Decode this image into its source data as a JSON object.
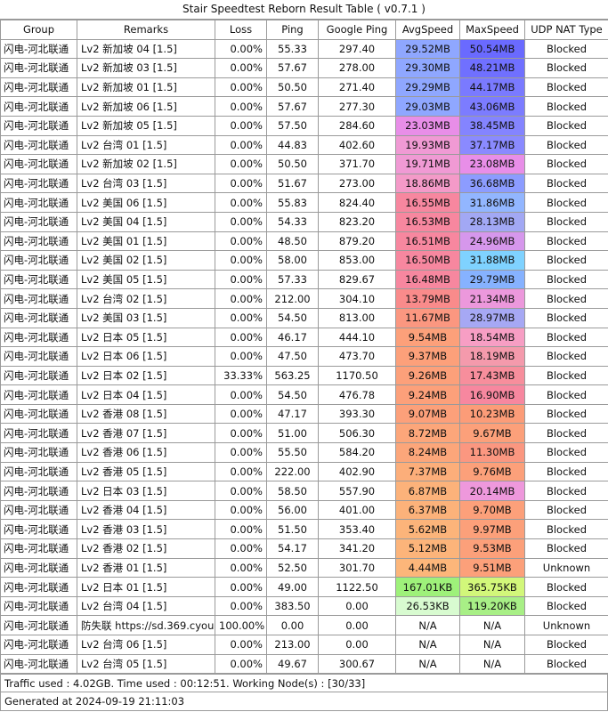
{
  "title": "Stair Speedtest Reborn Result Table ( v0.7.1 )",
  "headers": [
    "Group",
    "Remarks",
    "Loss",
    "Ping",
    "Google Ping",
    "AvgSpeed",
    "MaxSpeed",
    "UDP NAT Type"
  ],
  "rows": [
    {
      "group": "闪电-河北联通",
      "remarks": "Lv2 新加坡 04 [1.5]",
      "loss": "0.00%",
      "ping": "55.33",
      "gping": "297.40",
      "avg": "29.52MB",
      "avg_color": "#8fa7ff",
      "max": "50.54MB",
      "max_color": "#6a6aff",
      "nat": "Blocked"
    },
    {
      "group": "闪电-河北联通",
      "remarks": "Lv2 新加坡 03 [1.5]",
      "loss": "0.00%",
      "ping": "57.67",
      "gping": "278.00",
      "avg": "29.30MB",
      "avg_color": "#8fa7ff",
      "max": "48.21MB",
      "max_color": "#7070ff",
      "nat": "Blocked"
    },
    {
      "group": "闪电-河北联通",
      "remarks": "Lv2 新加坡 01 [1.5]",
      "loss": "0.00%",
      "ping": "50.50",
      "gping": "271.40",
      "avg": "29.29MB",
      "avg_color": "#8fa7ff",
      "max": "44.17MB",
      "max_color": "#7a7aff",
      "nat": "Blocked"
    },
    {
      "group": "闪电-河北联通",
      "remarks": "Lv2 新加坡 06 [1.5]",
      "loss": "0.00%",
      "ping": "57.67",
      "gping": "277.30",
      "avg": "29.03MB",
      "avg_color": "#8fa7ff",
      "max": "43.06MB",
      "max_color": "#7c7cff",
      "nat": "Blocked"
    },
    {
      "group": "闪电-河北联通",
      "remarks": "Lv2 新加坡 05 [1.5]",
      "loss": "0.00%",
      "ping": "57.50",
      "gping": "284.60",
      "avg": "23.03MB",
      "avg_color": "#e88ee8",
      "max": "38.45MB",
      "max_color": "#8484ff",
      "nat": "Blocked"
    },
    {
      "group": "闪电-河北联通",
      "remarks": "Lv2 台湾 01 [1.5]",
      "loss": "0.00%",
      "ping": "44.83",
      "gping": "402.60",
      "avg": "19.93MB",
      "avg_color": "#f09ad4",
      "max": "37.17MB",
      "max_color": "#8a8aff",
      "nat": "Blocked"
    },
    {
      "group": "闪电-河北联通",
      "remarks": "Lv2 新加坡 02 [1.5]",
      "loss": "0.00%",
      "ping": "50.50",
      "gping": "371.70",
      "avg": "19.71MB",
      "avg_color": "#f09ad4",
      "max": "23.08MB",
      "max_color": "#e88ee8",
      "nat": "Blocked"
    },
    {
      "group": "闪电-河北联通",
      "remarks": "Lv2 台湾 03 [1.5]",
      "loss": "0.00%",
      "ping": "51.67",
      "gping": "273.00",
      "avg": "18.86MB",
      "avg_color": "#f49ac8",
      "max": "36.68MB",
      "max_color": "#8c9cff",
      "nat": "Blocked"
    },
    {
      "group": "闪电-河北联通",
      "remarks": "Lv2 美国 06 [1.5]",
      "loss": "0.00%",
      "ping": "55.83",
      "gping": "824.40",
      "avg": "16.55MB",
      "avg_color": "#f7879f",
      "max": "31.86MB",
      "max_color": "#92b6ff",
      "nat": "Blocked"
    },
    {
      "group": "闪电-河北联通",
      "remarks": "Lv2 美国 04 [1.5]",
      "loss": "0.00%",
      "ping": "54.33",
      "gping": "823.20",
      "avg": "16.53MB",
      "avg_color": "#f7879f",
      "max": "28.13MB",
      "max_color": "#a2a8f4",
      "nat": "Blocked"
    },
    {
      "group": "闪电-河北联通",
      "remarks": "Lv2 美国 01 [1.5]",
      "loss": "0.00%",
      "ping": "48.50",
      "gping": "879.20",
      "avg": "16.51MB",
      "avg_color": "#f7879f",
      "max": "24.96MB",
      "max_color": "#d697ec",
      "nat": "Blocked"
    },
    {
      "group": "闪电-河北联通",
      "remarks": "Lv2 美国 02 [1.5]",
      "loss": "0.00%",
      "ping": "58.00",
      "gping": "853.00",
      "avg": "16.50MB",
      "avg_color": "#f7879f",
      "max": "31.88MB",
      "max_color": "#7fd2ff",
      "nat": "Blocked"
    },
    {
      "group": "闪电-河北联通",
      "remarks": "Lv2 美国 05 [1.5]",
      "loss": "0.00%",
      "ping": "57.33",
      "gping": "829.67",
      "avg": "16.48MB",
      "avg_color": "#f7879f",
      "max": "29.79MB",
      "max_color": "#86b2ff",
      "nat": "Blocked"
    },
    {
      "group": "闪电-河北联通",
      "remarks": "Lv2 台湾 02 [1.5]",
      "loss": "0.00%",
      "ping": "212.00",
      "gping": "304.10",
      "avg": "13.79MB",
      "avg_color": "#f98b8b",
      "max": "21.34MB",
      "max_color": "#ec98dc",
      "nat": "Blocked"
    },
    {
      "group": "闪电-河北联通",
      "remarks": "Lv2 美国 03 [1.5]",
      "loss": "0.00%",
      "ping": "54.50",
      "gping": "813.00",
      "avg": "11.67MB",
      "avg_color": "#fb9780",
      "max": "28.97MB",
      "max_color": "#a6a8f4",
      "nat": "Blocked"
    },
    {
      "group": "闪电-河北联通",
      "remarks": "Lv2 日本 05 [1.5]",
      "loss": "0.00%",
      "ping": "46.17",
      "gping": "444.10",
      "avg": "9.54MB",
      "avg_color": "#fca07a",
      "max": "18.54MB",
      "max_color": "#f79ec4",
      "nat": "Blocked"
    },
    {
      "group": "闪电-河北联通",
      "remarks": "Lv2 日本 06 [1.5]",
      "loss": "0.00%",
      "ping": "47.50",
      "gping": "473.70",
      "avg": "9.37MB",
      "avg_color": "#fca07a",
      "max": "18.19MB",
      "max_color": "#f49aac",
      "nat": "Blocked"
    },
    {
      "group": "闪电-河北联通",
      "remarks": "Lv2 日本 02 [1.5]",
      "loss": "33.33%",
      "ping": "563.25",
      "gping": "1170.50",
      "avg": "9.26MB",
      "avg_color": "#fca07a",
      "max": "17.43MB",
      "max_color": "#f78e9c",
      "nat": "Blocked"
    },
    {
      "group": "闪电-河北联通",
      "remarks": "Lv2 日本 04 [1.5]",
      "loss": "0.00%",
      "ping": "54.50",
      "gping": "476.78",
      "avg": "9.24MB",
      "avg_color": "#fca07a",
      "max": "16.90MB",
      "max_color": "#f7879f",
      "nat": "Blocked"
    },
    {
      "group": "闪电-河北联通",
      "remarks": "Lv2 香港 08 [1.5]",
      "loss": "0.00%",
      "ping": "47.17",
      "gping": "393.30",
      "avg": "9.07MB",
      "avg_color": "#fca07a",
      "max": "10.23MB",
      "max_color": "#fc9c78",
      "nat": "Blocked"
    },
    {
      "group": "闪电-河北联通",
      "remarks": "Lv2 香港 07 [1.5]",
      "loss": "0.00%",
      "ping": "51.00",
      "gping": "506.30",
      "avg": "8.72MB",
      "avg_color": "#fca67a",
      "max": "9.67MB",
      "max_color": "#fca07a",
      "nat": "Blocked"
    },
    {
      "group": "闪电-河北联通",
      "remarks": "Lv2 香港 06 [1.5]",
      "loss": "0.00%",
      "ping": "55.50",
      "gping": "584.20",
      "avg": "8.24MB",
      "avg_color": "#fca67a",
      "max": "11.30MB",
      "max_color": "#fb9780",
      "nat": "Blocked"
    },
    {
      "group": "闪电-河北联通",
      "remarks": "Lv2 香港 05 [1.5]",
      "loss": "0.00%",
      "ping": "222.00",
      "gping": "402.90",
      "avg": "7.37MB",
      "avg_color": "#fcae7a",
      "max": "9.76MB",
      "max_color": "#fca07a",
      "nat": "Blocked"
    },
    {
      "group": "闪电-河北联通",
      "remarks": "Lv2 日本 03 [1.5]",
      "loss": "0.00%",
      "ping": "58.50",
      "gping": "557.90",
      "avg": "6.87MB",
      "avg_color": "#fcb27a",
      "max": "20.14MB",
      "max_color": "#ee98dc",
      "nat": "Blocked"
    },
    {
      "group": "闪电-河北联通",
      "remarks": "Lv2 香港 04 [1.5]",
      "loss": "0.00%",
      "ping": "56.00",
      "gping": "401.00",
      "avg": "6.37MB",
      "avg_color": "#fcb27a",
      "max": "9.70MB",
      "max_color": "#fca07a",
      "nat": "Blocked"
    },
    {
      "group": "闪电-河北联通",
      "remarks": "Lv2 香港 03 [1.5]",
      "loss": "0.00%",
      "ping": "51.50",
      "gping": "353.40",
      "avg": "5.62MB",
      "avg_color": "#fcb47a",
      "max": "9.97MB",
      "max_color": "#fca07a",
      "nat": "Blocked"
    },
    {
      "group": "闪电-河北联通",
      "remarks": "Lv2 香港 02 [1.5]",
      "loss": "0.00%",
      "ping": "54.17",
      "gping": "341.20",
      "avg": "5.12MB",
      "avg_color": "#fcb47a",
      "max": "9.53MB",
      "max_color": "#fca07a",
      "nat": "Blocked"
    },
    {
      "group": "闪电-河北联通",
      "remarks": "Lv2 香港 01 [1.5]",
      "loss": "0.00%",
      "ping": "52.50",
      "gping": "301.70",
      "avg": "4.44MB",
      "avg_color": "#fcb67a",
      "max": "9.51MB",
      "max_color": "#fca07a",
      "nat": "Unknown"
    },
    {
      "group": "闪电-河北联通",
      "remarks": "Lv2 日本 01 [1.5]",
      "loss": "0.00%",
      "ping": "49.00",
      "gping": "1122.50",
      "avg": "167.01KB",
      "avg_color": "#9ef17a",
      "max": "365.75KB",
      "max_color": "#d2f77a",
      "nat": "Blocked"
    },
    {
      "group": "闪电-河北联通",
      "remarks": "Lv2 台湾 04 [1.5]",
      "loss": "0.00%",
      "ping": "383.50",
      "gping": "0.00",
      "avg": "26.53KB",
      "avg_color": "#d8fbd0",
      "max": "119.20KB",
      "max_color": "#a8ef86",
      "nat": "Blocked"
    },
    {
      "group": "闪电-河北联通",
      "remarks": "防失联 https://sd.369.cyou",
      "loss": "100.00%",
      "ping": "0.00",
      "gping": "0.00",
      "avg": "N/A",
      "avg_color": "#ffffff",
      "max": "N/A",
      "max_color": "#ffffff",
      "nat": "Unknown"
    },
    {
      "group": "闪电-河北联通",
      "remarks": "Lv2 台湾 06 [1.5]",
      "loss": "0.00%",
      "ping": "213.00",
      "gping": "0.00",
      "avg": "N/A",
      "avg_color": "#ffffff",
      "max": "N/A",
      "max_color": "#ffffff",
      "nat": "Blocked"
    },
    {
      "group": "闪电-河北联通",
      "remarks": "Lv2 台湾 05 [1.5]",
      "loss": "0.00%",
      "ping": "49.67",
      "gping": "300.67",
      "avg": "N/A",
      "avg_color": "#ffffff",
      "max": "N/A",
      "max_color": "#ffffff",
      "nat": "Blocked"
    }
  ],
  "footer": {
    "traffic": "Traffic used : 4.02GB. Time used : 00:12:51. Working Node(s) : [30/33]",
    "generated": "Generated at 2024-09-19 21:11:03"
  }
}
